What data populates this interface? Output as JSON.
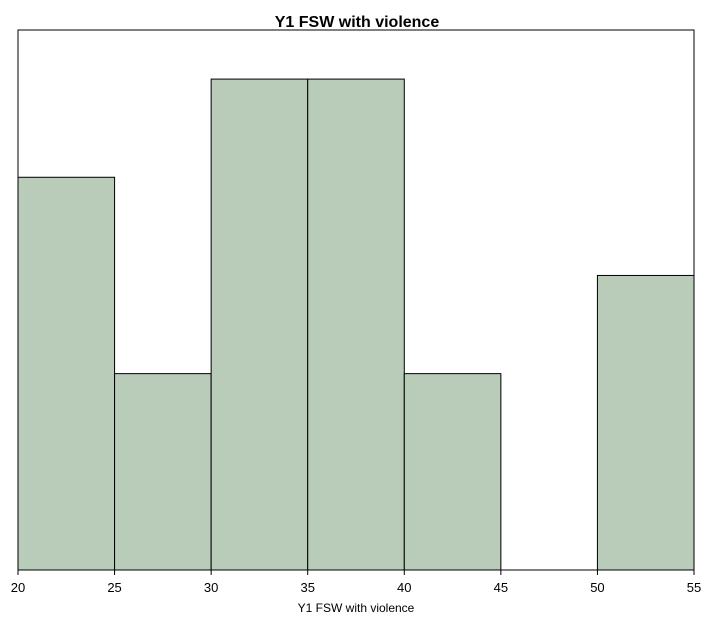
{
  "chart_data": {
    "type": "bar",
    "title": "Y1 FSW with violence",
    "xlabel": "Y1 FSW with violence",
    "ylabel": "",
    "bins": [
      {
        "start": 20,
        "end": 25,
        "value": 4
      },
      {
        "start": 25,
        "end": 30,
        "value": 2
      },
      {
        "start": 30,
        "end": 35,
        "value": 5
      },
      {
        "start": 35,
        "end": 40,
        "value": 5
      },
      {
        "start": 40,
        "end": 45,
        "value": 2
      },
      {
        "start": 45,
        "end": 50,
        "value": 0
      },
      {
        "start": 50,
        "end": 55,
        "value": 3
      }
    ],
    "xlim": [
      20,
      55
    ],
    "ylim": [
      0,
      5.5
    ],
    "x_ticks": [
      20,
      25,
      30,
      35,
      40,
      45,
      50,
      55
    ],
    "grid": false,
    "legend": "none",
    "colors": {
      "bar_fill": "#b9cbb9",
      "bar_stroke": "#000000",
      "frame": "#000000",
      "background": "#ffffff"
    }
  }
}
